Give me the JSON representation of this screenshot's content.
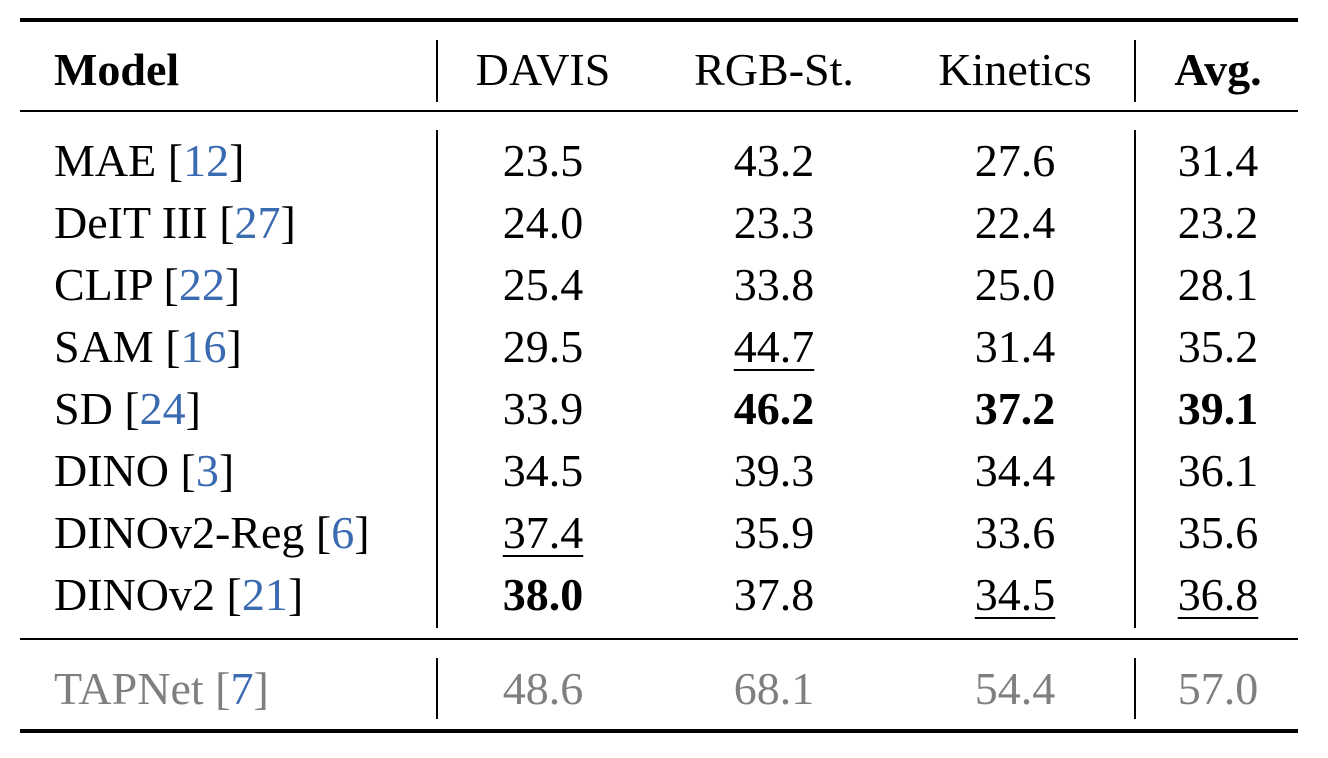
{
  "columns": {
    "model": "Model",
    "davis": "DAVIS",
    "rgb": "RGB-St.",
    "kinetics": "Kinetics",
    "avg": "Avg."
  },
  "rows": [
    {
      "name": "MAE",
      "ref": "12",
      "davis": "23.5",
      "rgb": "43.2",
      "kinetics": "27.6",
      "avg": "31.4"
    },
    {
      "name": "DeIT III",
      "ref": "27",
      "davis": "24.0",
      "rgb": "23.3",
      "kinetics": "22.4",
      "avg": "23.2"
    },
    {
      "name": "CLIP",
      "ref": "22",
      "davis": "25.4",
      "rgb": "33.8",
      "kinetics": "25.0",
      "avg": "28.1"
    },
    {
      "name": "SAM",
      "ref": "16",
      "davis": "29.5",
      "rgb": "44.7",
      "kinetics": "31.4",
      "avg": "35.2"
    },
    {
      "name": "SD",
      "ref": "24",
      "davis": "33.9",
      "rgb": "46.2",
      "kinetics": "37.2",
      "avg": "39.1"
    },
    {
      "name": "DINO",
      "ref": "3",
      "davis": "34.5",
      "rgb": "39.3",
      "kinetics": "34.4",
      "avg": "36.1"
    },
    {
      "name": "DINOv2-Reg",
      "ref": "6",
      "davis": "37.4",
      "rgb": "35.9",
      "kinetics": "33.6",
      "avg": "35.6"
    },
    {
      "name": "DINOv2",
      "ref": "21",
      "davis": "38.0",
      "rgb": "37.8",
      "kinetics": "34.5",
      "avg": "36.8"
    }
  ],
  "reference_row": {
    "name": "TAPNet",
    "ref": "7",
    "davis": "48.6",
    "rgb": "68.1",
    "kinetics": "54.4",
    "avg": "57.0"
  },
  "highlight": {
    "bold": [
      "SD.rgb",
      "SD.kinetics",
      "SD.avg",
      "DINOv2.davis"
    ],
    "underlined": [
      "SAM.rgb",
      "DINOv2-Reg.davis",
      "DINOv2.kinetics",
      "DINOv2.avg"
    ]
  },
  "colors": {
    "citation": "#3a6ab0",
    "reference_row_text": "#7f7f7f",
    "rules": "#000000"
  }
}
